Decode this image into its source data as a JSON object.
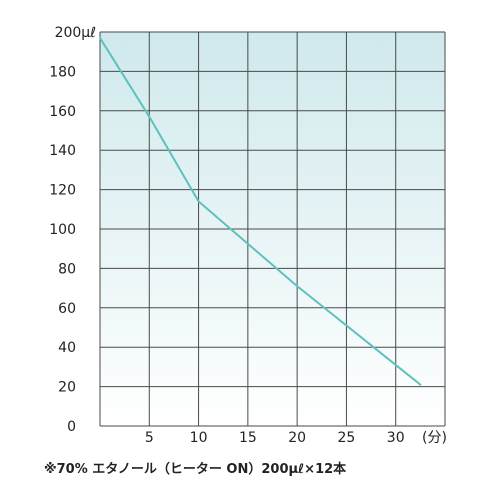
{
  "chart_data": {
    "type": "line",
    "title": "",
    "xlabel": "",
    "ylabel": "",
    "x_unit_label": "(分)",
    "y_top_label": "200μℓ",
    "xlim": [
      0,
      35
    ],
    "ylim": [
      0,
      200
    ],
    "x_ticks": [
      {
        "value": 5,
        "label": "5"
      },
      {
        "value": 10,
        "label": "10"
      },
      {
        "value": 15,
        "label": "15"
      },
      {
        "value": 20,
        "label": "20"
      },
      {
        "value": 25,
        "label": "25"
      },
      {
        "value": 30,
        "label": "30"
      }
    ],
    "y_ticks": [
      {
        "value": 0,
        "label": "0"
      },
      {
        "value": 20,
        "label": "20"
      },
      {
        "value": 40,
        "label": "40"
      },
      {
        "value": 60,
        "label": "60"
      },
      {
        "value": 80,
        "label": "80"
      },
      {
        "value": 100,
        "label": "100"
      },
      {
        "value": 120,
        "label": "120"
      },
      {
        "value": 140,
        "label": "140"
      },
      {
        "value": 160,
        "label": "160"
      },
      {
        "value": 180,
        "label": "180"
      }
    ],
    "grid": true,
    "series": [
      {
        "x": [
          0,
          5,
          10,
          20,
          32.5
        ],
        "y": [
          197,
          157,
          114,
          71,
          21
        ]
      }
    ],
    "colors": {
      "line": "#5fc1bd",
      "grid": "#4a4a4a",
      "bg_top": "#cfe9ec",
      "bg_bottom": "#ffffff"
    }
  },
  "footnote": "※70% エタノール（ヒーター ON）200μℓ×12本"
}
